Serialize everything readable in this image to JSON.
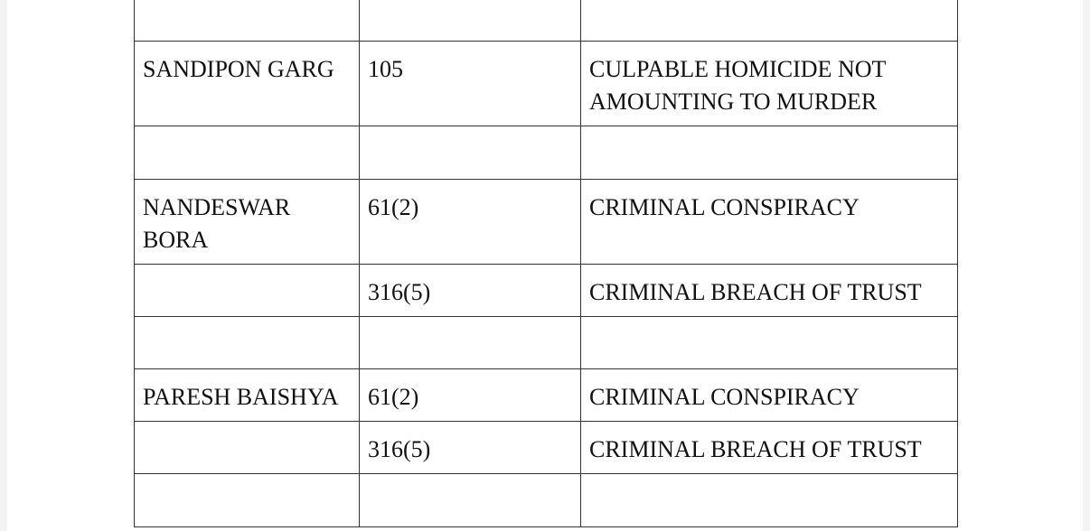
{
  "table": {
    "rows": [
      {
        "name": "",
        "section": "",
        "offence": ""
      },
      {
        "name": "SANDIPON GARG",
        "section": "105",
        "offence": "CULPABLE HOMICIDE NOT AMOUNTING TO MURDER"
      },
      {
        "name": "",
        "section": "",
        "offence": ""
      },
      {
        "name": "NANDESWAR BORA",
        "section": "61(2)",
        "offence": "CRIMINAL CONSPIRACY"
      },
      {
        "name": "",
        "section": "316(5)",
        "offence": "CRIMINAL BREACH OF TRUST"
      },
      {
        "name": "",
        "section": "",
        "offence": ""
      },
      {
        "name": "PARESH BAISHYA",
        "section": "61(2)",
        "offence": "CRIMINAL CONSPIRACY"
      },
      {
        "name": "",
        "section": "316(5)",
        "offence": "CRIMINAL BREACH OF TRUST"
      },
      {
        "name": "",
        "section": "",
        "offence": ""
      }
    ]
  }
}
